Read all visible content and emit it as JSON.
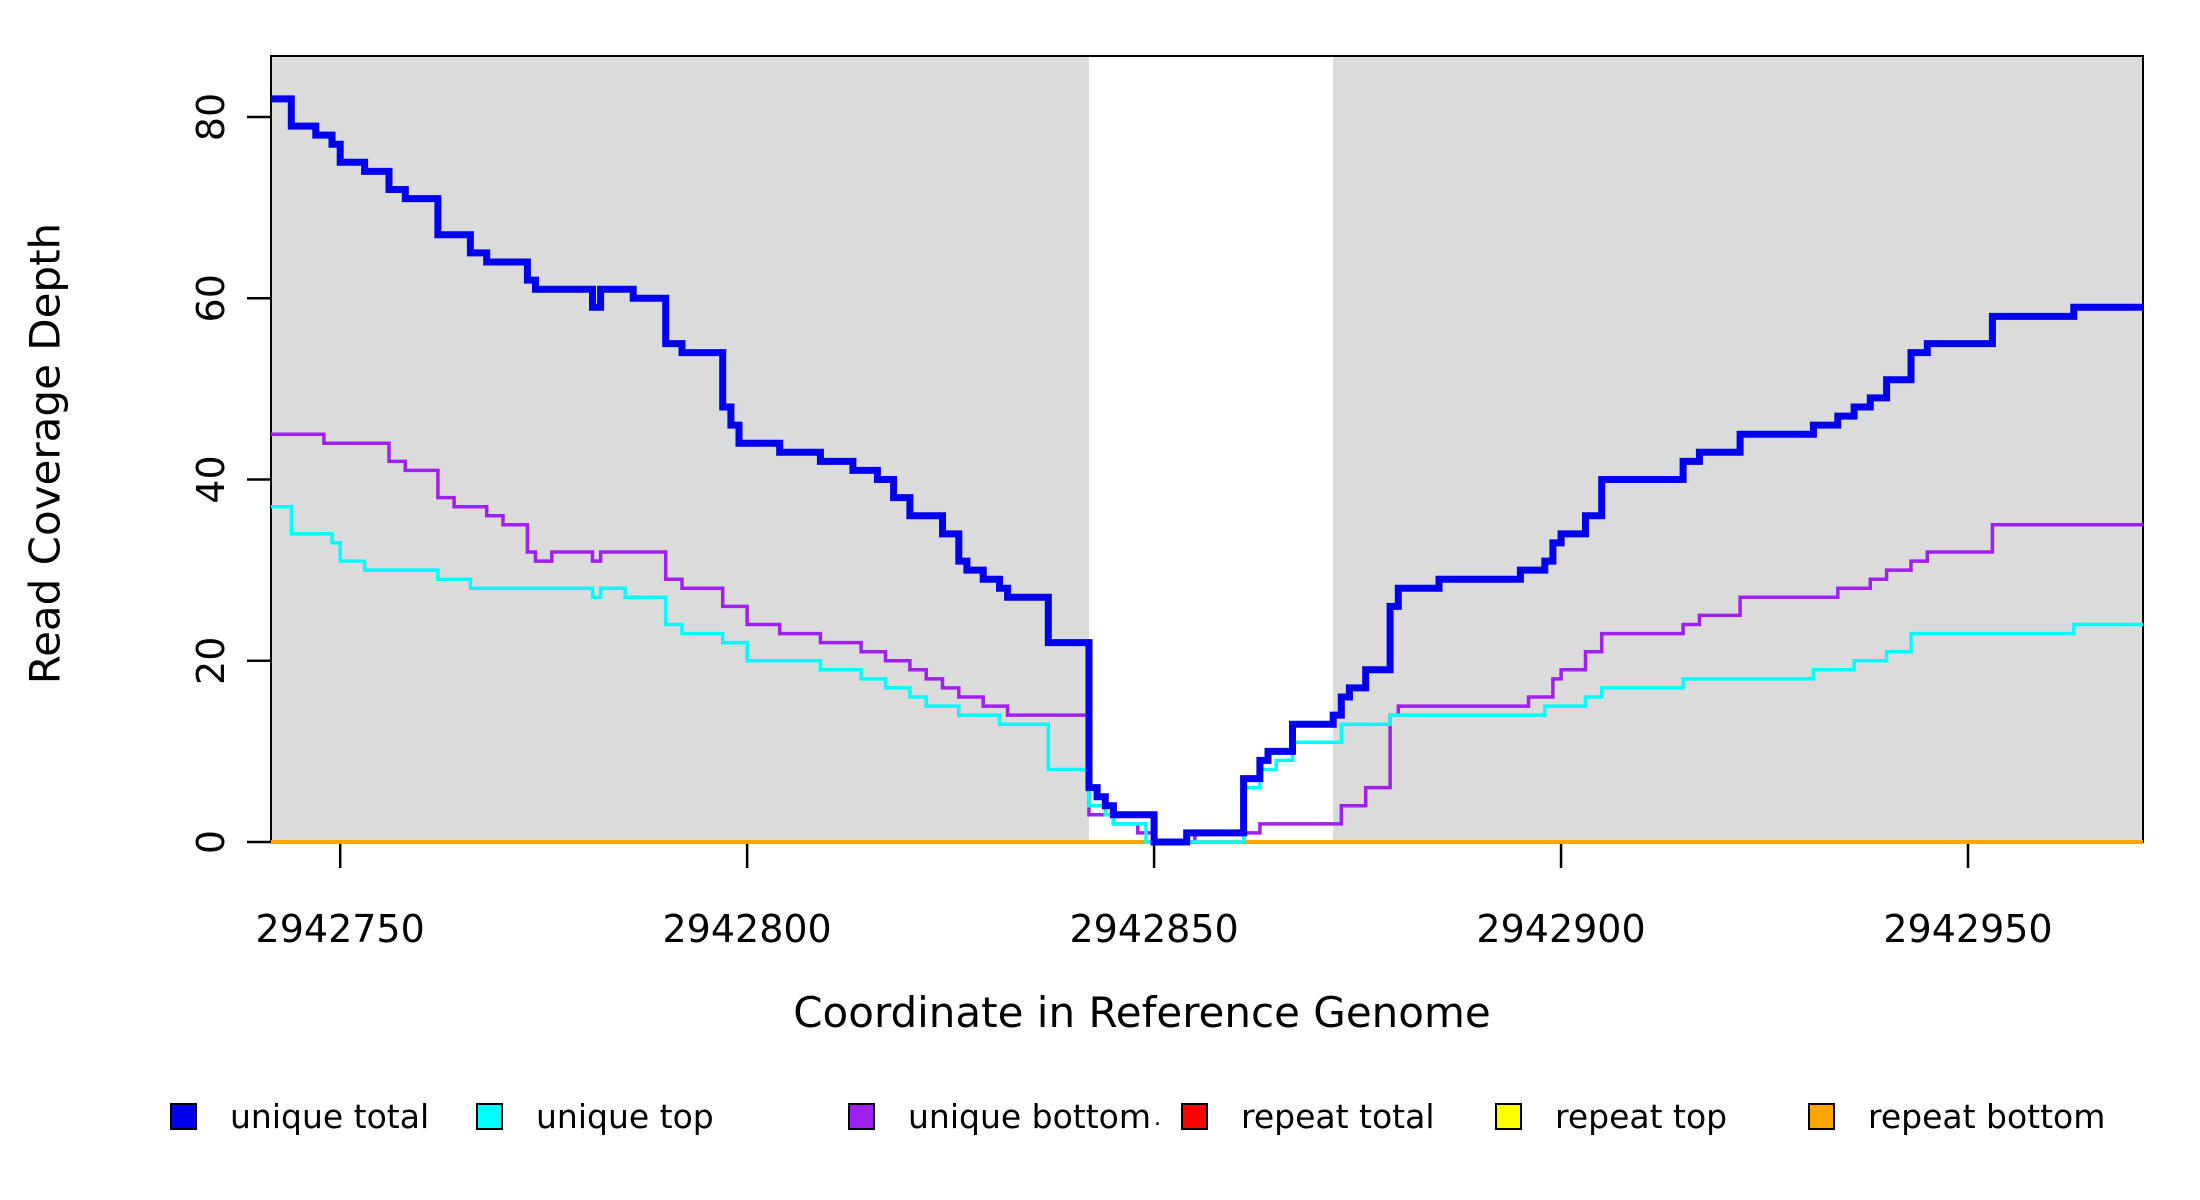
{
  "chart_data": {
    "type": "line",
    "subtype": "step-after",
    "title": "",
    "xlabel": "Coordinate in Reference Genome",
    "ylabel": "Read Coverage Depth",
    "xlim": [
      2942741.5,
      2942971.5
    ],
    "ylim": [
      0,
      86.5
    ],
    "grid": false,
    "legend_position": "bottom",
    "x_ticks": [
      2942750,
      2942800,
      2942850,
      2942900,
      2942950
    ],
    "y_ticks": [
      0,
      20,
      40,
      60,
      80
    ],
    "shaded_regions": [
      {
        "from": 2942741.5,
        "to": 2942842,
        "color": "#DBDBDB"
      },
      {
        "from": 2942872,
        "to": 2942971.5,
        "color": "#DBDBDB"
      }
    ],
    "series": [
      {
        "name": "repeat total",
        "color": "#FF0000",
        "line_width": 3.5,
        "points": [
          [
            2942741.5,
            0
          ]
        ]
      },
      {
        "name": "repeat top",
        "color": "#FFFF00",
        "line_width": 3.5,
        "points": [
          [
            2942741.5,
            0
          ]
        ]
      },
      {
        "name": "repeat bottom",
        "color": "#FFA500",
        "line_width": 4,
        "points": [
          [
            2942741.5,
            0
          ]
        ]
      },
      {
        "name": "unique bottom",
        "color": "#A020F0",
        "line_width": 3.5,
        "points": [
          [
            2942741.5,
            45
          ],
          [
            2942748,
            44
          ],
          [
            2942756,
            42
          ],
          [
            2942758,
            41
          ],
          [
            2942762,
            38
          ],
          [
            2942764,
            37
          ],
          [
            2942768,
            36
          ],
          [
            2942770,
            35
          ],
          [
            2942773,
            32
          ],
          [
            2942774,
            31
          ],
          [
            2942776,
            32
          ],
          [
            2942781,
            31
          ],
          [
            2942782,
            32
          ],
          [
            2942790,
            29
          ],
          [
            2942792,
            28
          ],
          [
            2942797,
            26
          ],
          [
            2942800,
            24
          ],
          [
            2942804,
            23
          ],
          [
            2942809,
            22
          ],
          [
            2942814,
            21
          ],
          [
            2942817,
            20
          ],
          [
            2942820,
            19
          ],
          [
            2942822,
            18
          ],
          [
            2942824,
            17
          ],
          [
            2942826,
            16
          ],
          [
            2942829,
            15
          ],
          [
            2942832,
            14
          ],
          [
            2942842,
            3
          ],
          [
            2942845,
            2
          ],
          [
            2942848,
            1
          ],
          [
            2942850,
            0
          ],
          [
            2942855,
            1
          ],
          [
            2942863,
            2
          ],
          [
            2942873,
            4
          ],
          [
            2942876,
            6
          ],
          [
            2942879,
            14
          ],
          [
            2942880,
            15
          ],
          [
            2942896,
            16
          ],
          [
            2942899,
            18
          ],
          [
            2942900,
            19
          ],
          [
            2942903,
            21
          ],
          [
            2942905,
            23
          ],
          [
            2942915,
            24
          ],
          [
            2942917,
            25
          ],
          [
            2942922,
            27
          ],
          [
            2942934,
            28
          ],
          [
            2942938,
            29
          ],
          [
            2942940,
            30
          ],
          [
            2942943,
            31
          ],
          [
            2942945,
            32
          ],
          [
            2942953,
            35
          ]
        ]
      },
      {
        "name": "unique top",
        "color": "#00FFFF",
        "line_width": 3.5,
        "points": [
          [
            2942741.5,
            37
          ],
          [
            2942744,
            34
          ],
          [
            2942749,
            33
          ],
          [
            2942750,
            31
          ],
          [
            2942753,
            30
          ],
          [
            2942762,
            29
          ],
          [
            2942766,
            28
          ],
          [
            2942781,
            27
          ],
          [
            2942782,
            28
          ],
          [
            2942785,
            27
          ],
          [
            2942790,
            24
          ],
          [
            2942792,
            23
          ],
          [
            2942797,
            22
          ],
          [
            2942800,
            20
          ],
          [
            2942809,
            19
          ],
          [
            2942814,
            18
          ],
          [
            2942817,
            17
          ],
          [
            2942820,
            16
          ],
          [
            2942822,
            15
          ],
          [
            2942826,
            14
          ],
          [
            2942831,
            13
          ],
          [
            2942837,
            8
          ],
          [
            2942842,
            4
          ],
          [
            2942844,
            3
          ],
          [
            2942845,
            2
          ],
          [
            2942849,
            0
          ],
          [
            2942861,
            6
          ],
          [
            2942863,
            8
          ],
          [
            2942865,
            9
          ],
          [
            2942867,
            11
          ],
          [
            2942873,
            13
          ],
          [
            2942879,
            14
          ],
          [
            2942898,
            15
          ],
          [
            2942903,
            16
          ],
          [
            2942905,
            17
          ],
          [
            2942915,
            18
          ],
          [
            2942931,
            19
          ],
          [
            2942936,
            20
          ],
          [
            2942940,
            21
          ],
          [
            2942943,
            23
          ],
          [
            2942963,
            24
          ]
        ]
      },
      {
        "name": "unique total",
        "color": "#0000EE",
        "line_width": 7,
        "points": [
          [
            2942741.5,
            82
          ],
          [
            2942744,
            79
          ],
          [
            2942747,
            78
          ],
          [
            2942749,
            77
          ],
          [
            2942750,
            75
          ],
          [
            2942753,
            74
          ],
          [
            2942756,
            72
          ],
          [
            2942758,
            71
          ],
          [
            2942762,
            67
          ],
          [
            2942766,
            65
          ],
          [
            2942768,
            64
          ],
          [
            2942773,
            62
          ],
          [
            2942774,
            61
          ],
          [
            2942781,
            59
          ],
          [
            2942782,
            61
          ],
          [
            2942786,
            60
          ],
          [
            2942790,
            55
          ],
          [
            2942792,
            54
          ],
          [
            2942797,
            48
          ],
          [
            2942798,
            46
          ],
          [
            2942799,
            44
          ],
          [
            2942804,
            43
          ],
          [
            2942809,
            42
          ],
          [
            2942813,
            41
          ],
          [
            2942816,
            40
          ],
          [
            2942818,
            38
          ],
          [
            2942820,
            36
          ],
          [
            2942824,
            34
          ],
          [
            2942826,
            31
          ],
          [
            2942827,
            30
          ],
          [
            2942829,
            29
          ],
          [
            2942831,
            28
          ],
          [
            2942832,
            27
          ],
          [
            2942837,
            22
          ],
          [
            2942842,
            6
          ],
          [
            2942843,
            5
          ],
          [
            2942844,
            4
          ],
          [
            2942845,
            3
          ],
          [
            2942850,
            0
          ],
          [
            2942854,
            1
          ],
          [
            2942861,
            7
          ],
          [
            2942863,
            9
          ],
          [
            2942864,
            10
          ],
          [
            2942867,
            13
          ],
          [
            2942872,
            14
          ],
          [
            2942873,
            16
          ],
          [
            2942874,
            17
          ],
          [
            2942876,
            19
          ],
          [
            2942879,
            26
          ],
          [
            2942880,
            28
          ],
          [
            2942885,
            29
          ],
          [
            2942895,
            30
          ],
          [
            2942898,
            31
          ],
          [
            2942899,
            33
          ],
          [
            2942900,
            34
          ],
          [
            2942903,
            36
          ],
          [
            2942905,
            40
          ],
          [
            2942915,
            42
          ],
          [
            2942917,
            43
          ],
          [
            2942922,
            45
          ],
          [
            2942931,
            46
          ],
          [
            2942934,
            47
          ],
          [
            2942936,
            48
          ],
          [
            2942938,
            49
          ],
          [
            2942940,
            51
          ],
          [
            2942943,
            54
          ],
          [
            2942945,
            55
          ],
          [
            2942953,
            58
          ],
          [
            2942963,
            59
          ]
        ]
      }
    ]
  },
  "axes": {
    "x_title": "Coordinate in Reference Genome",
    "y_title": "Read Coverage Depth"
  },
  "legend": {
    "stray_mark": ".",
    "items": [
      {
        "label": "unique total",
        "color": "#0000EE"
      },
      {
        "label": "unique top",
        "color": "#00FFFF"
      },
      {
        "label": "unique bottom",
        "color": "#A020F0"
      },
      {
        "label": "repeat total",
        "color": "#FF0000"
      },
      {
        "label": "repeat top",
        "color": "#FFFF00"
      },
      {
        "label": "repeat bottom",
        "color": "#FFA500"
      }
    ]
  }
}
